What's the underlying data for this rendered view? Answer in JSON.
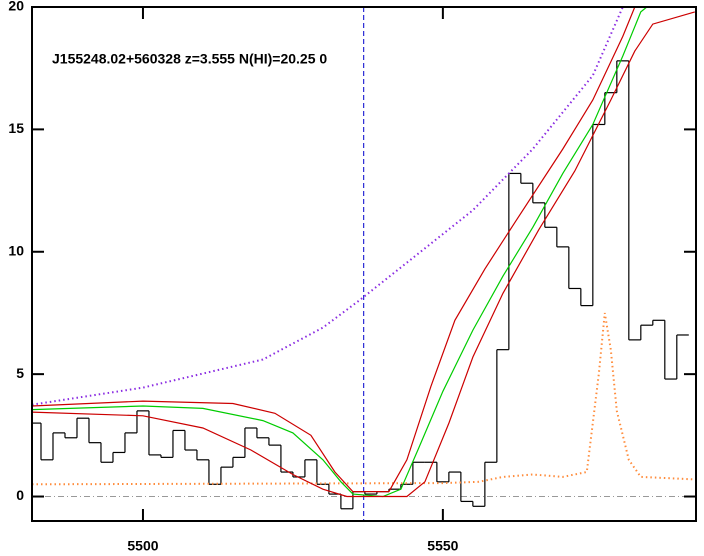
{
  "chart_data": {
    "type": "line",
    "annotation": "J155248.02+560328 z=3.555 N(HI)=20.25 0",
    "xlim": [
      5481.5,
      5592.2
    ],
    "ylim": [
      -1,
      20
    ],
    "xticks": [
      5500,
      5550
    ],
    "yticks": [
      0,
      5,
      10,
      15,
      20
    ],
    "marker_x": 5536.8,
    "zero_line": 0,
    "series": [
      {
        "style": "step",
        "color": "#000000",
        "x": [
          5482,
          5484,
          5486,
          5488,
          5490,
          5492,
          5494,
          5496,
          5498,
          5500,
          5502,
          5504,
          5506,
          5508,
          5510,
          5512,
          5514,
          5516,
          5518,
          5520,
          5522,
          5524,
          5526,
          5528,
          5530,
          5532,
          5534,
          5536,
          5538,
          5540,
          5542,
          5544,
          5546,
          5548,
          5550,
          5552,
          5554,
          5556,
          5558,
          5560,
          5562,
          5564,
          5566,
          5568,
          5570,
          5572,
          5574,
          5576,
          5578,
          5580,
          5582,
          5584,
          5586,
          5588,
          5590
        ],
        "values": [
          3.0,
          1.5,
          2.6,
          2.4,
          3.2,
          2.2,
          1.4,
          1.8,
          2.6,
          3.5,
          1.7,
          1.6,
          2.7,
          1.9,
          1.5,
          0.5,
          1.2,
          1.6,
          2.8,
          2.4,
          2.1,
          1.0,
          0.8,
          1.5,
          0.5,
          0.1,
          -0.5,
          0.2,
          0.1,
          0.2,
          0.3,
          0.5,
          1.4,
          1.4,
          0.6,
          1.0,
          -0.2,
          -0.4,
          1.4,
          6.0,
          13.2,
          12.8,
          12.0,
          11.0,
          10.2,
          8.5,
          7.8,
          15.2,
          16.5,
          17.8,
          6.4,
          7.0,
          7.2,
          4.8,
          6.6
        ]
      },
      {
        "style": "dotted",
        "color": "#ff8c3c",
        "x": [
          5481.5,
          5550,
          5556,
          5560,
          5565,
          5570,
          5574,
          5576,
          5577,
          5578,
          5579,
          5581,
          5583,
          5592
        ],
        "values": [
          0.5,
          0.55,
          0.6,
          0.8,
          0.9,
          0.8,
          1.0,
          5.0,
          7.5,
          6.0,
          3.5,
          1.5,
          0.8,
          0.7
        ]
      },
      {
        "style": "dotted",
        "color": "#8a2be2",
        "x": [
          5481.5,
          5500,
          5520,
          5530,
          5536,
          5545,
          5555,
          5565,
          5575,
          5580
        ],
        "values": [
          3.75,
          4.45,
          5.6,
          6.9,
          8.0,
          9.75,
          11.7,
          14.2,
          17.2,
          20
        ]
      },
      {
        "style": "solid",
        "color": "#00cc00",
        "x": [
          5481.5,
          5500,
          5510,
          5520,
          5525,
          5530,
          5533,
          5535,
          5540,
          5543,
          5546,
          5550,
          5555,
          5560,
          5565,
          5570,
          5575,
          5580,
          5583,
          5584
        ],
        "values": [
          3.55,
          3.7,
          3.6,
          3.1,
          2.6,
          1.5,
          0.6,
          0.1,
          0.0,
          0.3,
          2.0,
          4.3,
          6.8,
          9.0,
          11.0,
          13.2,
          15.2,
          18.0,
          19.8,
          20
        ]
      },
      {
        "style": "solid",
        "color": "#cc0000",
        "x": [
          5481.5,
          5500,
          5515,
          5522,
          5528,
          5532,
          5535,
          5541,
          5544,
          5548,
          5552,
          5557,
          5562,
          5570,
          5575,
          5580,
          5582
        ],
        "values": [
          3.7,
          3.9,
          3.8,
          3.4,
          2.5,
          1.0,
          0.2,
          0.2,
          1.5,
          4.5,
          7.2,
          9.3,
          11.2,
          14.2,
          16.2,
          18.8,
          20
        ]
      },
      {
        "style": "solid",
        "color": "#cc0000",
        "x": [
          5481.5,
          5500,
          5510,
          5518,
          5525,
          5530,
          5534,
          5544,
          5547,
          5551,
          5555,
          5560,
          5566,
          5572,
          5578,
          5582,
          5585,
          5592
        ],
        "values": [
          3.45,
          3.3,
          2.8,
          1.9,
          0.9,
          0.3,
          0.0,
          0.0,
          0.6,
          3.0,
          5.7,
          8.3,
          10.9,
          13.3,
          16.2,
          18.2,
          19.3,
          19.8
        ]
      }
    ]
  }
}
